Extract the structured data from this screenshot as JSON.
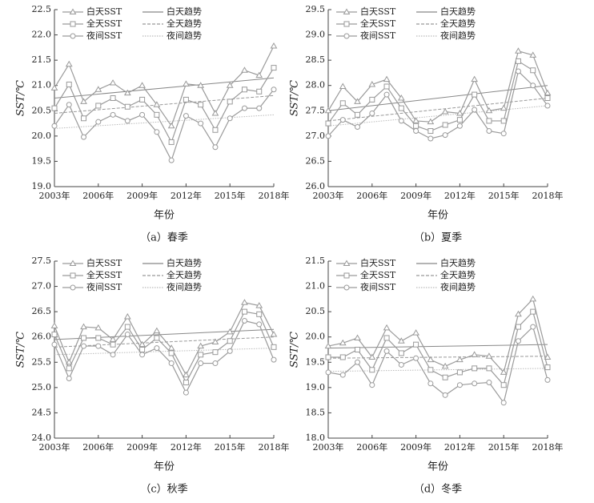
{
  "chart_data": [
    {
      "type": "line",
      "caption": "（a）春季",
      "xlabel": "年份",
      "ylabel": "SST/℃",
      "x": [
        2003,
        2004,
        2005,
        2006,
        2007,
        2008,
        2009,
        2010,
        2011,
        2012,
        2013,
        2014,
        2015,
        2016,
        2017,
        2018
      ],
      "xlim": [
        2003,
        2018
      ],
      "xticks": [
        {
          "value": 2003,
          "label": "2003年"
        },
        {
          "value": 2006,
          "label": "2006年"
        },
        {
          "value": 2009,
          "label": "2009年"
        },
        {
          "value": 2012,
          "label": "2012年"
        },
        {
          "value": 2015,
          "label": "2015年"
        },
        {
          "value": 2018,
          "label": "2018年"
        }
      ],
      "ylim": [
        19.0,
        22.5
      ],
      "yticks": [
        {
          "value": 19,
          "label": "19.0"
        },
        19.5,
        {
          "value": 20,
          "label": "20.0"
        },
        20.5,
        {
          "value": 21,
          "label": "21.0"
        },
        21.5,
        {
          "value": 22,
          "label": "22.0"
        },
        22.5
      ],
      "series": [
        {
          "name": "白天SST",
          "color": "#9a9a9a",
          "marker": "triangle",
          "values": [
            20.95,
            21.42,
            20.68,
            20.92,
            21.05,
            20.85,
            21.0,
            20.62,
            20.2,
            21.03,
            21.0,
            20.45,
            21.0,
            21.3,
            21.2,
            21.78
          ]
        },
        {
          "name": "全天SST",
          "color": "#9a9a9a",
          "marker": "square",
          "values": [
            20.55,
            21.02,
            20.35,
            20.6,
            20.75,
            20.58,
            20.72,
            20.42,
            19.88,
            20.72,
            20.62,
            20.12,
            20.68,
            20.92,
            20.88,
            21.35
          ]
        },
        {
          "name": "夜间SST",
          "color": "#9a9a9a",
          "marker": "circle",
          "values": [
            20.2,
            20.62,
            19.98,
            20.28,
            20.42,
            20.3,
            20.42,
            20.08,
            19.52,
            20.4,
            20.25,
            19.78,
            20.35,
            20.55,
            20.55,
            20.92
          ]
        }
      ],
      "trends": [
        {
          "name": "白天趋势",
          "color": "#888888",
          "style": "solid",
          "x": [
            2003,
            2018
          ],
          "values": [
            20.75,
            21.15
          ]
        },
        {
          "name": "全天趋势",
          "color": "#999999",
          "style": "dashed",
          "x": [
            2003,
            2018
          ],
          "values": [
            20.45,
            20.8
          ]
        },
        {
          "name": "夜间趋势",
          "color": "#bbbbbb",
          "style": "dotted",
          "x": [
            2003,
            2018
          ],
          "values": [
            20.15,
            20.42
          ]
        }
      ]
    },
    {
      "type": "line",
      "caption": "（b）夏季",
      "xlabel": "年份",
      "ylabel": "SST/℃",
      "x": [
        2003,
        2004,
        2005,
        2006,
        2007,
        2008,
        2009,
        2010,
        2011,
        2012,
        2013,
        2014,
        2015,
        2016,
        2017,
        2018
      ],
      "xlim": [
        2003,
        2018
      ],
      "xticks": [
        {
          "value": 2003,
          "label": "2003年"
        },
        {
          "value": 2006,
          "label": "2006年"
        },
        {
          "value": 2009,
          "label": "2009年"
        },
        {
          "value": 2012,
          "label": "2012年"
        },
        {
          "value": 2015,
          "label": "2015年"
        },
        {
          "value": 2018,
          "label": "2018年"
        }
      ],
      "ylim": [
        26.0,
        29.5
      ],
      "yticks": [
        {
          "value": 26,
          "label": "26.0"
        },
        26.5,
        {
          "value": 27,
          "label": "27.0"
        },
        27.5,
        {
          "value": 28,
          "label": "28.0"
        },
        28.5,
        {
          "value": 29,
          "label": "29.0"
        },
        29.5
      ],
      "series": [
        {
          "name": "白天SST",
          "color": "#9a9a9a",
          "marker": "triangle",
          "values": [
            27.5,
            27.98,
            27.68,
            28.02,
            28.12,
            27.75,
            27.3,
            27.28,
            27.48,
            27.45,
            28.12,
            27.5,
            27.55,
            28.68,
            28.6,
            27.85
          ]
        },
        {
          "name": "全天SST",
          "color": "#9a9a9a",
          "marker": "square",
          "values": [
            27.25,
            27.65,
            27.42,
            27.72,
            27.98,
            27.55,
            27.2,
            27.1,
            27.22,
            27.32,
            27.82,
            27.3,
            27.3,
            28.48,
            28.3,
            27.75
          ]
        },
        {
          "name": "夜间SST",
          "color": "#9a9a9a",
          "marker": "circle",
          "values": [
            27.0,
            27.32,
            27.18,
            27.45,
            27.82,
            27.3,
            27.1,
            26.95,
            27.02,
            27.2,
            27.52,
            27.1,
            27.05,
            28.28,
            28.0,
            27.6
          ]
        }
      ],
      "trends": [
        {
          "name": "白天趋势",
          "color": "#888888",
          "style": "solid",
          "x": [
            2003,
            2018
          ],
          "values": [
            27.5,
            28.0
          ]
        },
        {
          "name": "全天趋势",
          "color": "#999999",
          "style": "dashed",
          "x": [
            2003,
            2018
          ],
          "values": [
            27.3,
            27.75
          ]
        },
        {
          "name": "夜间趋势",
          "color": "#bbbbbb",
          "style": "dotted",
          "x": [
            2003,
            2018
          ],
          "values": [
            27.2,
            27.6
          ]
        }
      ]
    },
    {
      "type": "line",
      "caption": "（c）秋季",
      "xlabel": "年份",
      "ylabel": "SST/℃",
      "x": [
        2003,
        2004,
        2005,
        2006,
        2007,
        2008,
        2009,
        2010,
        2011,
        2012,
        2013,
        2014,
        2015,
        2016,
        2017,
        2018
      ],
      "xlim": [
        2003,
        2018
      ],
      "xticks": [
        {
          "value": 2003,
          "label": "2003年"
        },
        {
          "value": 2006,
          "label": "2006年"
        },
        {
          "value": 2009,
          "label": "2009年"
        },
        {
          "value": 2012,
          "label": "2012年"
        },
        {
          "value": 2015,
          "label": "2015年"
        },
        {
          "value": 2018,
          "label": "2018年"
        }
      ],
      "ylim": [
        24.0,
        27.5
      ],
      "yticks": [
        {
          "value": 24,
          "label": "24.0"
        },
        24.5,
        {
          "value": 25,
          "label": "25.0"
        },
        25.5,
        {
          "value": 26,
          "label": "26.0"
        },
        26.5,
        {
          "value": 27,
          "label": "27.0"
        },
        27.5
      ],
      "series": [
        {
          "name": "白天SST",
          "color": "#9a9a9a",
          "marker": "triangle",
          "values": [
            26.22,
            25.5,
            26.2,
            26.18,
            25.95,
            26.4,
            25.85,
            26.12,
            25.78,
            25.25,
            25.82,
            25.9,
            26.1,
            26.68,
            26.62,
            26.05
          ]
        },
        {
          "name": "全天SST",
          "color": "#9a9a9a",
          "marker": "square",
          "values": [
            26.05,
            25.38,
            25.98,
            25.98,
            25.85,
            26.2,
            25.75,
            25.98,
            25.68,
            25.1,
            25.65,
            25.7,
            25.92,
            26.5,
            26.45,
            25.8
          ]
        },
        {
          "name": "夜间SST",
          "color": "#9a9a9a",
          "marker": "circle",
          "values": [
            25.85,
            25.18,
            25.82,
            25.82,
            25.65,
            26.05,
            25.65,
            25.78,
            25.48,
            24.9,
            25.48,
            25.48,
            25.72,
            26.32,
            26.25,
            25.55
          ]
        }
      ],
      "trends": [
        {
          "name": "白天趋势",
          "color": "#888888",
          "style": "solid",
          "x": [
            2003,
            2018
          ],
          "values": [
            25.95,
            26.15
          ]
        },
        {
          "name": "全天趋势",
          "color": "#999999",
          "style": "dashed",
          "x": [
            2003,
            2018
          ],
          "values": [
            25.8,
            26.0
          ]
        },
        {
          "name": "夜间趋势",
          "color": "#bbbbbb",
          "style": "dotted",
          "x": [
            2003,
            2018
          ],
          "values": [
            25.65,
            25.78
          ]
        }
      ]
    },
    {
      "type": "line",
      "caption": "（d）冬季",
      "xlabel": "年份",
      "ylabel": "SST/℃",
      "x": [
        2003,
        2004,
        2005,
        2006,
        2007,
        2008,
        2009,
        2010,
        2011,
        2012,
        2013,
        2014,
        2015,
        2016,
        2017,
        2018
      ],
      "xlim": [
        2003,
        2018
      ],
      "xticks": [
        {
          "value": 2003,
          "label": "2003年"
        },
        {
          "value": 2006,
          "label": "2006年"
        },
        {
          "value": 2009,
          "label": "2009年"
        },
        {
          "value": 2012,
          "label": "2012年"
        },
        {
          "value": 2015,
          "label": "2015年"
        },
        {
          "value": 2018,
          "label": "2018年"
        }
      ],
      "ylim": [
        18.0,
        21.5
      ],
      "yticks": [
        {
          "value": 18,
          "label": "18.0"
        },
        18.5,
        {
          "value": 19,
          "label": "19.0"
        },
        19.5,
        {
          "value": 20,
          "label": "20.0"
        },
        20.5,
        {
          "value": 21,
          "label": "21.0"
        },
        21.5
      ],
      "series": [
        {
          "name": "白天SST",
          "color": "#9a9a9a",
          "marker": "triangle",
          "values": [
            19.82,
            19.88,
            19.98,
            19.6,
            20.18,
            19.92,
            20.08,
            19.55,
            19.42,
            19.55,
            19.65,
            19.62,
            19.3,
            20.45,
            20.75,
            19.6
          ]
        },
        {
          "name": "全天SST",
          "color": "#9a9a9a",
          "marker": "square",
          "values": [
            19.6,
            19.6,
            19.75,
            19.35,
            19.98,
            19.68,
            19.85,
            19.35,
            19.2,
            19.3,
            19.38,
            19.38,
            19.05,
            20.2,
            20.5,
            19.4
          ]
        },
        {
          "name": "夜间SST",
          "color": "#9a9a9a",
          "marker": "circle",
          "values": [
            19.3,
            19.25,
            19.5,
            19.05,
            19.72,
            19.45,
            19.58,
            19.08,
            18.85,
            19.05,
            19.08,
            19.1,
            18.7,
            19.92,
            20.2,
            19.15
          ]
        }
      ],
      "trends": [
        {
          "name": "白天趋势",
          "color": "#888888",
          "style": "solid",
          "x": [
            2003,
            2018
          ],
          "values": [
            19.78,
            19.85
          ]
        },
        {
          "name": "全天趋势",
          "color": "#999999",
          "style": "dashed",
          "x": [
            2003,
            2018
          ],
          "values": [
            19.58,
            19.62
          ]
        },
        {
          "name": "夜间趋势",
          "color": "#bbbbbb",
          "style": "dotted",
          "x": [
            2003,
            2018
          ],
          "values": [
            19.32,
            19.38
          ]
        }
      ]
    }
  ]
}
